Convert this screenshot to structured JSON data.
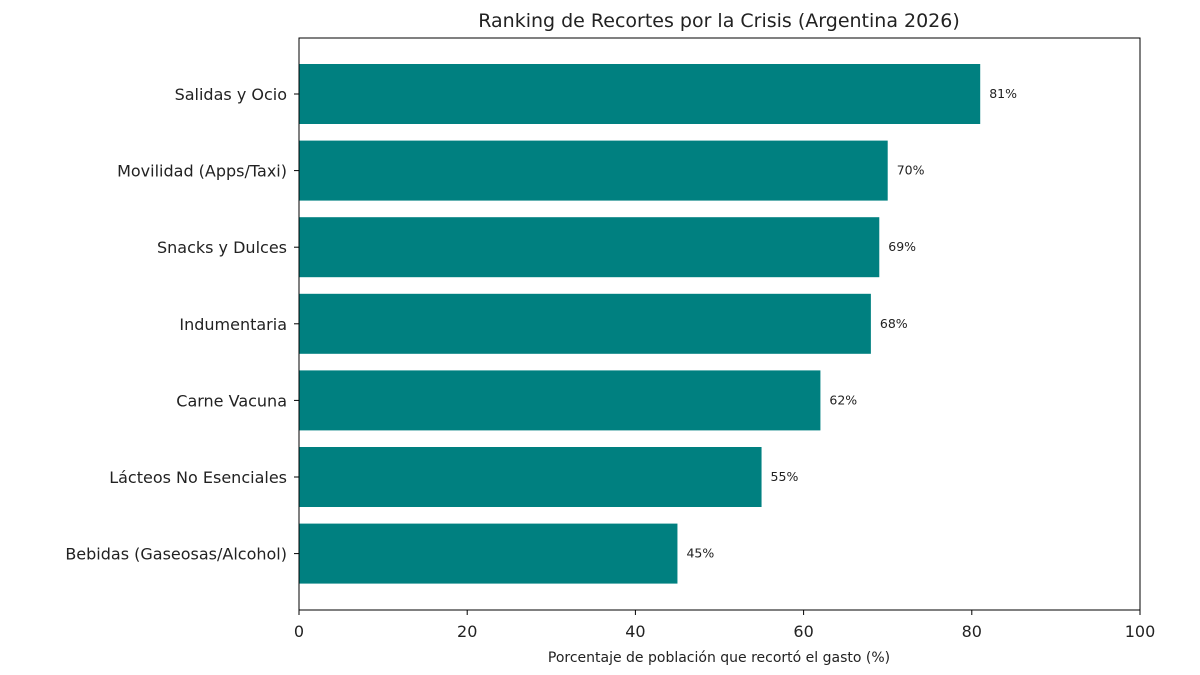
{
  "chart_data": {
    "type": "bar",
    "orientation": "horizontal",
    "title": "Ranking de Recortes por la Crisis (Argentina 2026)",
    "xlabel": "Porcentaje de población que recortó el gasto (%)",
    "ylabel": "",
    "categories": [
      "Salidas y Ocio",
      "Movilidad (Apps/Taxi)",
      "Snacks y Dulces",
      "Indumentaria",
      "Carne Vacuna",
      "Lácteos No Esenciales",
      "Bebidas (Gaseosas/Alcohol)"
    ],
    "values": [
      81,
      70,
      69,
      68,
      62,
      55,
      45
    ],
    "data_labels": [
      "81%",
      "70%",
      "69%",
      "68%",
      "62%",
      "55%",
      "45%"
    ],
    "xlim": [
      0,
      100
    ],
    "xticks": [
      0,
      20,
      40,
      60,
      80,
      100
    ],
    "xtick_labels": [
      "0",
      "20",
      "40",
      "60",
      "80",
      "100"
    ],
    "grid": false,
    "legend": "none",
    "bar_color": "#008080"
  }
}
